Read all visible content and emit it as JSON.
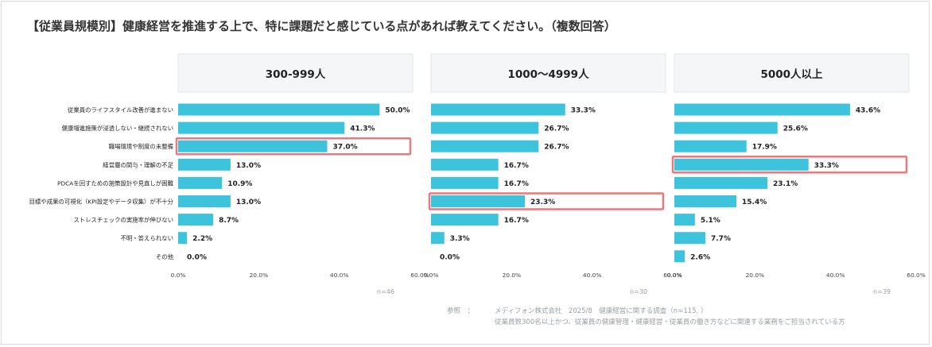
{
  "title": "【従業員規模別】健康経営を推進する上で、特に課題だと感じている点があれば教えてください。（複数回答）",
  "chart_data": {
    "type": "bar",
    "orientation": "horizontal",
    "categories": [
      "従業員のライフスタイル改善が進まない",
      "健康増進施策が浸透しない・継続されない",
      "職場環境や制度の未整備",
      "経営層の関与・理解の不足",
      "PDCAを回すための施策設計や見直しが困難",
      "目標や成果の可視化（KPI設定やデータ収集）が不十分",
      "ストレスチェックの実施率が伸びない",
      "不明・答えられない",
      "その他"
    ],
    "xlim": [
      0,
      60
    ],
    "xticks": [
      "0.0%",
      "20.0%",
      "40.0%",
      "60.0%"
    ],
    "grid": false,
    "bar_color": "#3ec3dc",
    "highlight_color": "#e8797c",
    "panels": [
      {
        "title": "300-999人",
        "values": [
          50.0,
          41.3,
          37.0,
          13.0,
          10.9,
          13.0,
          8.7,
          2.2,
          0.0
        ],
        "labels": [
          "50.0%",
          "41.3%",
          "37.0%",
          "13.0%",
          "10.9%",
          "13.0%",
          "8.7%",
          "2.2%",
          "0.0%"
        ],
        "highlight": 2,
        "n": "n=46"
      },
      {
        "title": "1000～4999人",
        "values": [
          33.3,
          26.7,
          26.7,
          16.7,
          16.7,
          23.3,
          16.7,
          3.3,
          0.0
        ],
        "labels": [
          "33.3%",
          "26.7%",
          "26.7%",
          "16.7%",
          "16.7%",
          "23.3%",
          "16.7%",
          "3.3%",
          "0.0%"
        ],
        "highlight": 5,
        "n": "n=30"
      },
      {
        "title": "5000人以上",
        "values": [
          43.6,
          25.6,
          17.9,
          33.3,
          23.1,
          15.4,
          5.1,
          7.7,
          2.6
        ],
        "labels": [
          "43.6%",
          "25.6%",
          "17.9%",
          "33.3%",
          "23.1%",
          "15.4%",
          "5.1%",
          "7.7%",
          "2.6%"
        ],
        "highlight": 3,
        "n": "n=39"
      }
    ]
  },
  "source": {
    "label": "参照　：",
    "line1": "メディフォン株式会社　2025/8　健康経営に関する調査（n=115, ）",
    "line2": "従業員数300名以上かつ、従業員の健康管理・健康経営・従業員の働き方などに関連する業務をご担当されている方"
  }
}
